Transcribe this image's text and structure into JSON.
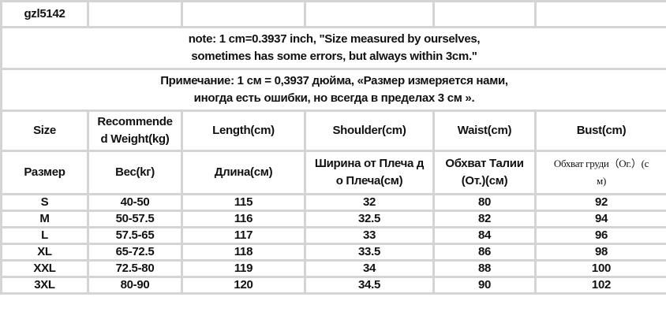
{
  "model": "gzl5142",
  "note_en": [
    "note: 1 cm=0.3937 inch, \"Size measured by ourselves,",
    "sometimes has some errors, but always within 3cm.\""
  ],
  "note_ru": [
    "Примечание: 1 см = 0,3937 дюйма, «Размер измеряется нами,",
    "иногда есть ошибки, но всегда в пределах 3 см »."
  ],
  "headers_en": [
    [
      "Size"
    ],
    [
      "Recommende",
      "d Weight(kg)"
    ],
    [
      "Length(cm)"
    ],
    [
      "Shoulder(cm)"
    ],
    [
      "Waist(cm)"
    ],
    [
      "Bust(cm)"
    ]
  ],
  "headers_ru": [
    [
      "Размер"
    ],
    [
      "Вес(kг)"
    ],
    [
      "Длина(см)"
    ],
    [
      "Ширина от Плеча д",
      "о Плеча(см)"
    ],
    [
      "Обхват Талии",
      "(От.)(см)"
    ],
    [
      "Обхват груди（Ог.）(с",
      "м)"
    ]
  ],
  "rows": [
    [
      "S",
      "40-50",
      "115",
      "32",
      "80",
      "92"
    ],
    [
      "M",
      "50-57.5",
      "116",
      "32.5",
      "82",
      "94"
    ],
    [
      "L",
      "57.5-65",
      "117",
      "33",
      "84",
      "96"
    ],
    [
      "XL",
      "65-72.5",
      "118",
      "33.5",
      "86",
      "98"
    ],
    [
      "XXL",
      "72.5-80",
      "119",
      "34",
      "88",
      "100"
    ],
    [
      "3XL",
      "80-90",
      "120",
      "34.5",
      "90",
      "102"
    ]
  ]
}
